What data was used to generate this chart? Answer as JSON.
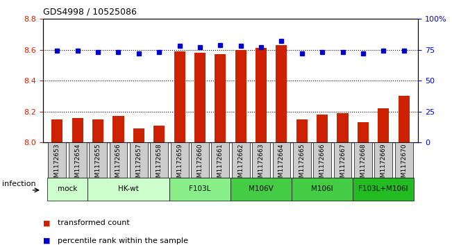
{
  "title": "GDS4998 / 10525086",
  "samples": [
    "GSM1172653",
    "GSM1172654",
    "GSM1172655",
    "GSM1172656",
    "GSM1172657",
    "GSM1172658",
    "GSM1172659",
    "GSM1172660",
    "GSM1172661",
    "GSM1172662",
    "GSM1172663",
    "GSM1172664",
    "GSM1172665",
    "GSM1172666",
    "GSM1172667",
    "GSM1172668",
    "GSM1172669",
    "GSM1172670"
  ],
  "bar_values": [
    8.15,
    8.16,
    8.15,
    8.17,
    8.09,
    8.11,
    8.59,
    8.58,
    8.57,
    8.6,
    8.61,
    8.63,
    8.15,
    8.18,
    8.19,
    8.13,
    8.22,
    8.3
  ],
  "percentile_values": [
    74,
    74,
    73,
    73,
    72,
    73,
    78,
    77,
    79,
    78,
    77,
    82,
    72,
    73,
    73,
    72,
    74,
    74
  ],
  "bar_color": "#cc2200",
  "percentile_color": "#0000cc",
  "ylim_left": [
    8.0,
    8.8
  ],
  "ylim_right": [
    0,
    100
  ],
  "yticks_left": [
    8.0,
    8.2,
    8.4,
    8.6,
    8.8
  ],
  "yticks_right": [
    0,
    25,
    50,
    75,
    100
  ],
  "ytick_labels_right": [
    "0",
    "25",
    "50",
    "75",
    "100%"
  ],
  "grid_lines": [
    8.2,
    8.4,
    8.6
  ],
  "group_info": [
    {
      "label": "mock",
      "cols": [
        0,
        1
      ],
      "color": "#ccffcc"
    },
    {
      "label": "HK-wt",
      "cols": [
        2,
        3,
        4,
        5
      ],
      "color": "#ccffcc"
    },
    {
      "label": "F103L",
      "cols": [
        6,
        7,
        8
      ],
      "color": "#88ee88"
    },
    {
      "label": "M106V",
      "cols": [
        9,
        10,
        11
      ],
      "color": "#44cc44"
    },
    {
      "label": "M106I",
      "cols": [
        12,
        13,
        14
      ],
      "color": "#44cc44"
    },
    {
      "label": "F103L+M106I",
      "cols": [
        15,
        16,
        17
      ],
      "color": "#22bb22"
    }
  ],
  "sample_box_color": "#cccccc",
  "infection_label": "infection",
  "legend_items": [
    {
      "label": "transformed count",
      "color": "#cc2200"
    },
    {
      "label": "percentile rank within the sample",
      "color": "#0000cc"
    }
  ]
}
